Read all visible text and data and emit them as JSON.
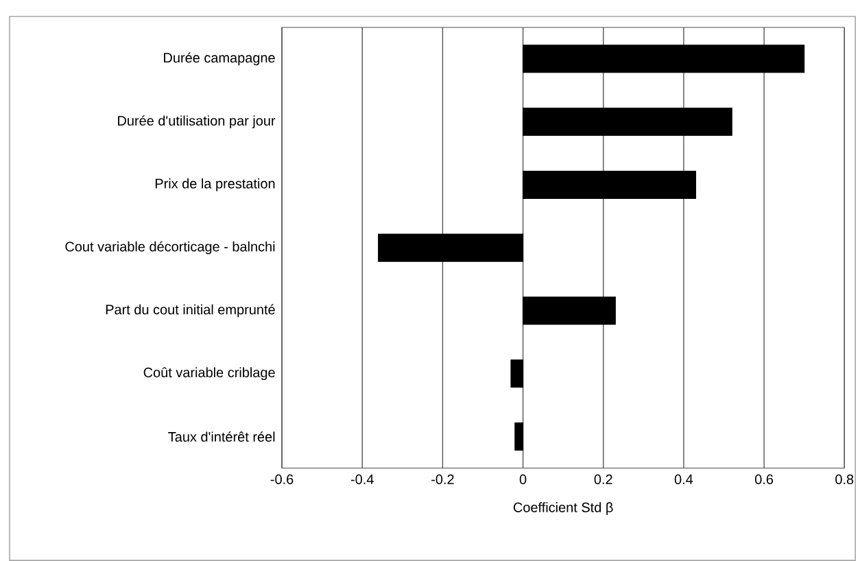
{
  "chart_data": {
    "type": "bar",
    "orientation": "horizontal",
    "xlabel": "Coefficient Std β",
    "categories": [
      "Durée camapagne",
      "Durée d'utilisation par jour",
      "Prix de la prestation",
      "Cout variable décorticage - balnchi",
      "Part du cout initial emprunté",
      "Coût variable criblage",
      "Taux d'intérêt réel"
    ],
    "values": [
      0.7,
      0.52,
      0.43,
      -0.36,
      0.23,
      -0.03,
      -0.02
    ],
    "color": "#000000",
    "xlim": [
      -0.6,
      0.8
    ],
    "xticks": [
      -0.6,
      -0.4,
      -0.2,
      0,
      0.2,
      0.4,
      0.6,
      0.8
    ],
    "grid": "x"
  }
}
